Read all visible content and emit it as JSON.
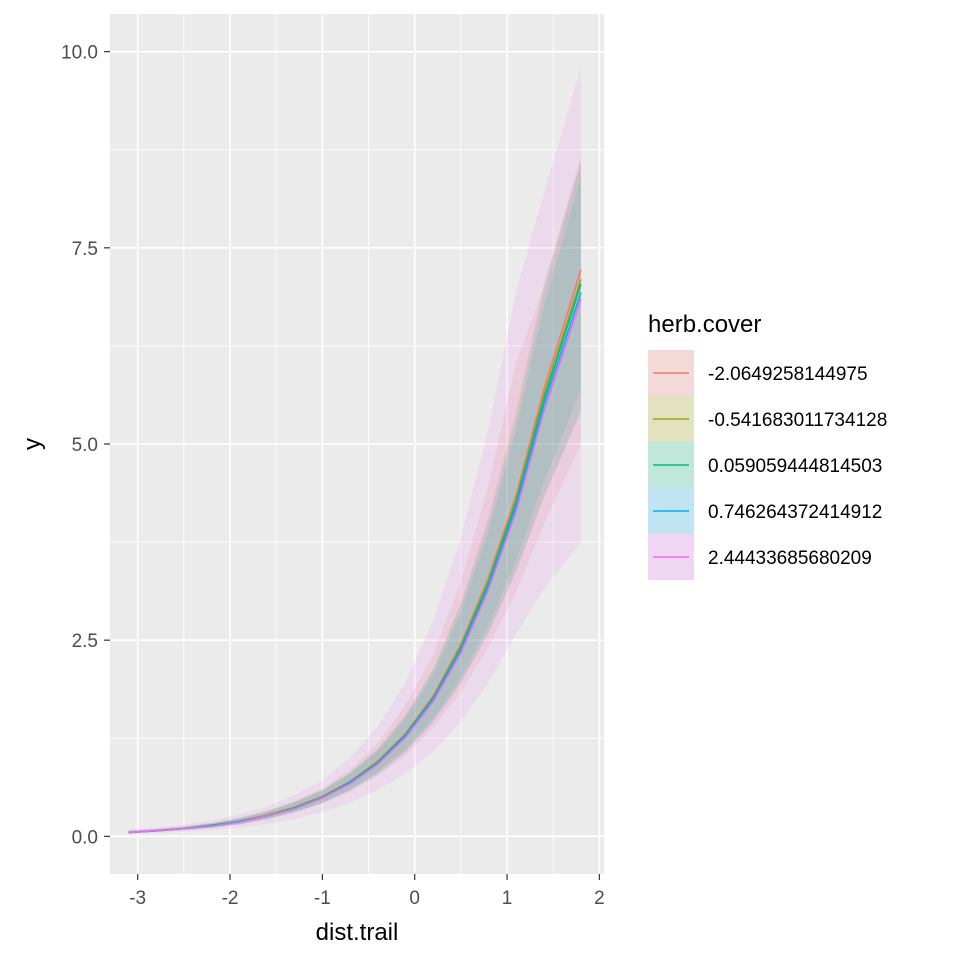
{
  "chart_data": {
    "type": "line",
    "xlabel": "dist.trail",
    "ylabel": "y",
    "xlim": [
      -3.3,
      2.05
    ],
    "ylim": [
      -0.48,
      10.48
    ],
    "x_ticks": [
      -3,
      -2,
      -1,
      0,
      1,
      2
    ],
    "x_tick_labels": [
      "-3",
      "-2",
      "-1",
      "0",
      "1",
      "2"
    ],
    "y_ticks": [
      0,
      2.5,
      5,
      7.5,
      10
    ],
    "y_tick_labels": [
      "0.0",
      "2.5",
      "5.0",
      "7.5",
      "10.0"
    ],
    "grid": true,
    "legend": {
      "title": "herb.cover",
      "position": "right"
    },
    "x": [
      -3.1,
      -2.8,
      -2.5,
      -2.2,
      -1.9,
      -1.6,
      -1.3,
      -1.0,
      -0.7,
      -0.4,
      -0.1,
      0.2,
      0.5,
      0.8,
      1.1,
      1.4,
      1.8
    ],
    "series": [
      {
        "name": "-2.0649258144975",
        "color": "#F8766D",
        "values": [
          0.05,
          0.07,
          0.1,
          0.14,
          0.19,
          0.27,
          0.37,
          0.51,
          0.7,
          0.96,
          1.31,
          1.79,
          2.45,
          3.3,
          4.35,
          5.7,
          7.22
        ],
        "lower": [
          0.04,
          0.06,
          0.08,
          0.11,
          0.15,
          0.22,
          0.31,
          0.42,
          0.57,
          0.77,
          1.03,
          1.38,
          1.84,
          2.42,
          3.12,
          3.98,
          5.0
        ],
        "upper": [
          0.08,
          0.1,
          0.13,
          0.17,
          0.24,
          0.33,
          0.45,
          0.61,
          0.85,
          1.19,
          1.67,
          2.32,
          3.25,
          4.48,
          6.05,
          7.0,
          8.7
        ]
      },
      {
        "name": "-0.541683011734128",
        "color": "#A3A500",
        "values": [
          0.05,
          0.07,
          0.1,
          0.14,
          0.19,
          0.27,
          0.37,
          0.5,
          0.69,
          0.95,
          1.3,
          1.77,
          2.42,
          3.26,
          4.3,
          5.62,
          7.1
        ],
        "lower": [
          0.04,
          0.06,
          0.08,
          0.11,
          0.16,
          0.22,
          0.31,
          0.43,
          0.59,
          0.8,
          1.08,
          1.46,
          1.96,
          2.6,
          3.38,
          4.32,
          5.45
        ],
        "upper": [
          0.07,
          0.09,
          0.12,
          0.17,
          0.23,
          0.32,
          0.44,
          0.59,
          0.81,
          1.12,
          1.55,
          2.14,
          2.98,
          4.08,
          5.45,
          7.05,
          8.6
        ]
      },
      {
        "name": "0.059059444814503",
        "color": "#00BF7D",
        "values": [
          0.05,
          0.07,
          0.1,
          0.14,
          0.19,
          0.26,
          0.36,
          0.5,
          0.69,
          0.94,
          1.29,
          1.76,
          2.4,
          3.23,
          4.26,
          5.57,
          7.04
        ],
        "lower": [
          0.04,
          0.06,
          0.08,
          0.11,
          0.16,
          0.22,
          0.31,
          0.43,
          0.6,
          0.82,
          1.11,
          1.5,
          2.02,
          2.69,
          3.52,
          4.52,
          5.7
        ],
        "upper": [
          0.07,
          0.09,
          0.12,
          0.16,
          0.23,
          0.31,
          0.43,
          0.58,
          0.8,
          1.09,
          1.5,
          2.06,
          2.85,
          3.89,
          5.2,
          6.75,
          8.4
        ]
      },
      {
        "name": "0.746264372414912",
        "color": "#00B0F6",
        "values": [
          0.05,
          0.07,
          0.1,
          0.13,
          0.19,
          0.26,
          0.36,
          0.49,
          0.68,
          0.93,
          1.28,
          1.74,
          2.37,
          3.19,
          4.21,
          5.5,
          6.93
        ],
        "lower": [
          0.04,
          0.06,
          0.08,
          0.11,
          0.15,
          0.22,
          0.3,
          0.42,
          0.58,
          0.79,
          1.07,
          1.45,
          1.95,
          2.59,
          3.38,
          4.33,
          5.4
        ],
        "upper": [
          0.07,
          0.09,
          0.12,
          0.17,
          0.23,
          0.32,
          0.44,
          0.59,
          0.81,
          1.11,
          1.54,
          2.12,
          2.95,
          4.02,
          5.35,
          6.95,
          8.6
        ]
      },
      {
        "name": "2.44433685680209",
        "color": "#E76BF3",
        "values": [
          0.05,
          0.07,
          0.1,
          0.13,
          0.18,
          0.26,
          0.35,
          0.49,
          0.67,
          0.92,
          1.26,
          1.72,
          2.34,
          3.15,
          4.15,
          5.42,
          6.85
        ],
        "lower": [
          0.03,
          0.04,
          0.06,
          0.08,
          0.11,
          0.16,
          0.22,
          0.31,
          0.43,
          0.59,
          0.8,
          1.08,
          1.46,
          1.96,
          2.58,
          3.15,
          3.75
        ],
        "upper": [
          0.09,
          0.11,
          0.15,
          0.2,
          0.28,
          0.38,
          0.53,
          0.72,
          1.0,
          1.4,
          1.96,
          2.75,
          3.8,
          5.2,
          6.95,
          8.2,
          9.8
        ]
      }
    ]
  }
}
